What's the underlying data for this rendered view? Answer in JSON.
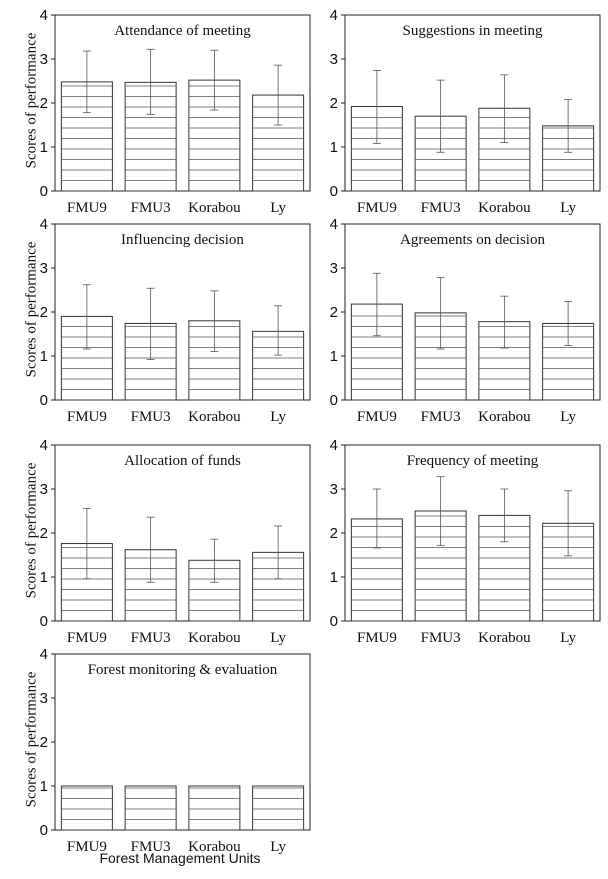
{
  "figure": {
    "y_axis_label": "Scores of performance",
    "x_axis_label": "Forest Management Units"
  },
  "chart_data": [
    {
      "type": "bar",
      "title": "Attendance of meeting",
      "categories": [
        "FMU9",
        "FMU3",
        "Korabou",
        "Ly"
      ],
      "values": [
        2.48,
        2.47,
        2.52,
        2.18
      ],
      "error_low": [
        1.78,
        1.74,
        1.84,
        1.5
      ],
      "error_high": [
        3.18,
        3.22,
        3.2,
        2.86
      ],
      "ylabel": "Scores of performance",
      "ylim": [
        0,
        4
      ],
      "yticks": [
        0,
        1,
        2,
        3,
        4
      ],
      "fill": "horizontal hatch"
    },
    {
      "type": "bar",
      "title": "Suggestions in meeting",
      "categories": [
        "FMU9",
        "FMU3",
        "Korabou",
        "Ly"
      ],
      "values": [
        1.92,
        1.7,
        1.88,
        1.48
      ],
      "error_low": [
        1.08,
        0.88,
        1.1,
        0.88
      ],
      "error_high": [
        2.74,
        2.52,
        2.64,
        2.08
      ],
      "ylim": [
        0,
        4
      ],
      "yticks": [
        0,
        1,
        2,
        3,
        4
      ],
      "fill": "horizontal hatch"
    },
    {
      "type": "bar",
      "title": "Influencing decision",
      "categories": [
        "FMU9",
        "FMU3",
        "Korabou",
        "Ly"
      ],
      "values": [
        1.9,
        1.74,
        1.8,
        1.56
      ],
      "error_low": [
        1.16,
        0.92,
        1.1,
        1.02
      ],
      "error_high": [
        2.62,
        2.54,
        2.48,
        2.14
      ],
      "ylabel": "Scores of performance",
      "ylim": [
        0,
        4
      ],
      "yticks": [
        0,
        1,
        2,
        3,
        4
      ],
      "fill": "horizontal hatch"
    },
    {
      "type": "bar",
      "title": "Agreements on decision",
      "categories": [
        "FMU9",
        "FMU3",
        "Korabou",
        "Ly"
      ],
      "values": [
        2.18,
        1.98,
        1.78,
        1.74
      ],
      "error_low": [
        1.46,
        1.16,
        1.18,
        1.24
      ],
      "error_high": [
        2.88,
        2.78,
        2.36,
        2.24
      ],
      "ylim": [
        0,
        4
      ],
      "yticks": [
        0,
        1,
        2,
        3,
        4
      ],
      "fill": "horizontal hatch"
    },
    {
      "type": "bar",
      "title": "Allocation of funds",
      "categories": [
        "FMU9",
        "FMU3",
        "Korabou",
        "Ly"
      ],
      "values": [
        1.76,
        1.62,
        1.38,
        1.56
      ],
      "error_low": [
        0.96,
        0.88,
        0.88,
        0.96
      ],
      "error_high": [
        2.56,
        2.36,
        1.86,
        2.16
      ],
      "ylabel": "Scores of performance",
      "ylim": [
        0,
        4
      ],
      "yticks": [
        0,
        1,
        2,
        3,
        4
      ],
      "fill": "horizontal hatch"
    },
    {
      "type": "bar",
      "title": "Frequency of meeting",
      "categories": [
        "FMU9",
        "FMU3",
        "Korabou",
        "Ly"
      ],
      "values": [
        2.32,
        2.5,
        2.4,
        2.22
      ],
      "error_low": [
        1.66,
        1.72,
        1.8,
        1.48
      ],
      "error_high": [
        3.0,
        3.28,
        3.0,
        2.96
      ],
      "ylim": [
        0,
        4
      ],
      "yticks": [
        0,
        1,
        2,
        3,
        4
      ],
      "fill": "horizontal hatch"
    },
    {
      "type": "bar",
      "title": "Forest monitoring & evaluation",
      "categories": [
        "FMU9",
        "FMU3",
        "Korabou",
        "Ly"
      ],
      "values": [
        1.0,
        1.0,
        1.0,
        1.0
      ],
      "ylabel": "Scores of performance",
      "xlabel": "Forest Management Units",
      "ylim": [
        0,
        4
      ],
      "yticks": [
        0,
        1,
        2,
        3,
        4
      ],
      "fill": "horizontal hatch"
    }
  ]
}
